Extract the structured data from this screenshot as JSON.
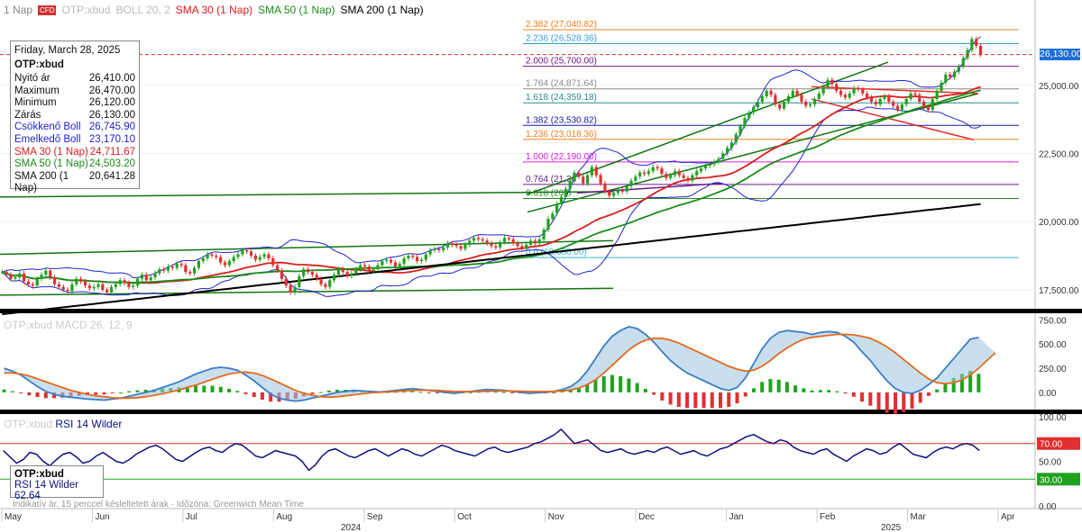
{
  "legend": {
    "prefix": "1 Nap",
    "badge": "CFD",
    "instrument": "OTP:xbud",
    "boll": "BOLL 20, 2",
    "sma30": "SMA 30 (1 Nap)",
    "sma50": "SMA 50 (1 Nap)",
    "sma200": "SMA 200 (1 Nap)"
  },
  "info": {
    "date": "Friday, March 28, 2025",
    "symbol": "OTP:xbud",
    "rows": [
      {
        "label": "Nyitó ár",
        "value": "26,410.00"
      },
      {
        "label": "Maximum",
        "value": "26,470.00"
      },
      {
        "label": "Minimum",
        "value": "26,120.00"
      },
      {
        "label": "Zárás",
        "value": "26,130.00"
      },
      {
        "label": "Csökkenő Boll",
        "value": "26,745.90"
      },
      {
        "label": "Emelkedő Boll",
        "value": "23,170.10"
      },
      {
        "label": "SMA 30 (1 Nap)",
        "value": "24,711.67"
      },
      {
        "label": "SMA 50 (1 Nap)",
        "value": "24,503.20"
      },
      {
        "label": "SMA 200 (1 Nap)",
        "value": "20,641.28"
      }
    ]
  },
  "rsi_box": {
    "symbol": "OTP:xbud",
    "label": "RSI 14 Wilder",
    "value": "62.64"
  },
  "macd_label": "OTP:xbud MACD 26, 12, 9",
  "rsi_label_symbol": "OTP:xbud",
  "rsi_label_name": "RSI 14 Wilder",
  "footnote": "Indikatív ár. 15 perccel késleltetett árak · Időzóna: Greenwich Mean Time",
  "last_price": "26,130.00",
  "colors": {
    "up": "#1fa31f",
    "down": "#e03030",
    "boll": "#2222cc",
    "sma30": "#d81e1e",
    "sma50": "#1a8c1a",
    "sma200": "#000000",
    "trend": "#117711",
    "fib": "#f08020",
    "macd": "#3a7ec4",
    "signal": "#e56a1c",
    "rsi": "#101080",
    "pricetag": "#1e6fd8"
  },
  "chart_data": [
    {
      "type": "candlestick",
      "panel": "price",
      "x_months": [
        "May",
        "Jun",
        "Jul",
        "Aug",
        "Sep",
        "Oct",
        "Nov",
        "Dec",
        "Jan",
        "Feb",
        "Mar",
        "Apr"
      ],
      "year_labels": [
        "2024",
        "2025"
      ],
      "y_ticks": [
        "17,500.00",
        "20,000.00",
        "22,500.00",
        "25,000.00"
      ],
      "ylim": [
        16800,
        28000
      ],
      "last_close": 26130,
      "closes": [
        18150,
        18050,
        17900,
        17950,
        18100,
        17800,
        17700,
        17650,
        17900,
        18050,
        18200,
        17950,
        17700,
        17600,
        17500,
        17450,
        17700,
        17900,
        17800,
        17650,
        17550,
        17600,
        17700,
        17500,
        17400,
        17600,
        17700,
        17850,
        17750,
        17600,
        17650,
        17900,
        18050,
        17850,
        17950,
        18100,
        18250,
        18200,
        18350,
        18300,
        18450,
        18400,
        18150,
        18100,
        18300,
        18550,
        18650,
        18800,
        18750,
        18700,
        18500,
        18400,
        18550,
        18700,
        18800,
        18950,
        18900,
        18750,
        18600,
        18700,
        18800,
        18650,
        18400,
        18200,
        17900,
        17650,
        17400,
        17600,
        18000,
        18250,
        18150,
        18050,
        17900,
        17700,
        17600,
        17850,
        18050,
        18250,
        18150,
        18000,
        18100,
        18250,
        18400,
        18350,
        18200,
        18250,
        18400,
        18550,
        18600,
        18500,
        18350,
        18450,
        18650,
        18750,
        18700,
        18550,
        18600,
        18800,
        18950,
        19000,
        18950,
        19050,
        19200,
        19150,
        19100,
        19000,
        19150,
        19300,
        19400,
        19350,
        19300,
        19200,
        19100,
        19050,
        19250,
        19400,
        19350,
        19200,
        19100,
        19000,
        19150,
        19300,
        19200,
        19350,
        19700,
        20100,
        20300,
        20650,
        20900,
        21200,
        21500,
        21800,
        21650,
        21400,
        21700,
        22000,
        21700,
        21400,
        21100,
        20950,
        21050,
        21150,
        21100,
        21300,
        21500,
        21650,
        21800,
        21750,
        21850,
        22000,
        21950,
        21750,
        21600,
        21700,
        21850,
        21700,
        21600,
        21500,
        21700,
        21850,
        21950,
        22050,
        22100,
        22200,
        22300,
        22500,
        22700,
        22900,
        23200,
        23500,
        23800,
        24000,
        24200,
        24400,
        24600,
        24800,
        24650,
        24300,
        24150,
        24400,
        24600,
        24800,
        24650,
        24400,
        24250,
        24300,
        24500,
        24700,
        24950,
        25200,
        25050,
        24800,
        24650,
        24550,
        24700,
        24900,
        24850,
        24700,
        24550,
        24400,
        24300,
        24500,
        24600,
        24400,
        24250,
        24100,
        24300,
        24500,
        24700,
        24650,
        24400,
        24200,
        24100,
        24500,
        24800,
        25100,
        25400,
        25300,
        25500,
        25700,
        26000,
        26300,
        26700,
        26450,
        26130
      ],
      "price_levels": [
        {
          "label": "2.382 (27,040.82)",
          "value": 27040.82,
          "color": "#f08020"
        },
        {
          "label": "2.236 (26,528.36)",
          "value": 26528.36,
          "color": "#3a9bd8"
        },
        {
          "label": "2.000 (25,700.00)",
          "value": 25700,
          "color": "#6a1b8a"
        },
        {
          "label": "1.764 (24,871.64)",
          "value": 24871.64,
          "color": "#888888"
        },
        {
          "label": "1.618 (24,359.18)",
          "value": 24359.18,
          "color": "#2a8a8a"
        },
        {
          "label": "1.382 (23,530.82)",
          "value": 23530.82,
          "color": "#1a1a9a"
        },
        {
          "label": "1.236 (23,018.36)",
          "value": 23018.36,
          "color": "#f08020"
        },
        {
          "label": "1.000 (22,190.00)",
          "value": 22190,
          "color": "#e020e0"
        },
        {
          "label": "0.764 (21,36",
          "value": 21361.64,
          "color": "#6a1b8a"
        },
        {
          "label": "0.618 (20,8",
          "value": 20849.18,
          "color": "#2a8a2a"
        },
        {
          "label": "0.0 (18,680.00)",
          "value": 18680,
          "color": "#3ab8d8"
        }
      ]
    },
    {
      "type": "bar",
      "panel": "macd",
      "name": "MACD 26, 12, 9",
      "y_ticks": [
        "750.00",
        "500.00",
        "250.00",
        "0.00"
      ],
      "ylim": [
        -150,
        800
      ],
      "macd": [
        250,
        220,
        180,
        120,
        60,
        10,
        -20,
        -40,
        -50,
        -60,
        -70,
        -75,
        -80,
        -70,
        -60,
        -40,
        -20,
        0,
        20,
        50,
        80,
        110,
        150,
        190,
        220,
        250,
        260,
        250,
        230,
        180,
        120,
        50,
        -20,
        -60,
        -80,
        -90,
        -80,
        -60,
        -40,
        -20,
        0,
        10,
        20,
        15,
        10,
        5,
        10,
        20,
        30,
        40,
        30,
        20,
        10,
        0,
        -10,
        0,
        10,
        20,
        30,
        25,
        20,
        10,
        0,
        -10,
        -5,
        0,
        10,
        30,
        60,
        120,
        220,
        350,
        480,
        580,
        640,
        680,
        660,
        600,
        520,
        420,
        330,
        260,
        200,
        160,
        120,
        80,
        40,
        20,
        50,
        150,
        300,
        450,
        560,
        620,
        640,
        630,
        620,
        600,
        620,
        630,
        620,
        580,
        520,
        420,
        330,
        220,
        120,
        40,
        0,
        -10,
        20,
        80,
        150,
        250,
        350,
        450,
        550,
        570
      ],
      "signal": [
        200,
        200,
        190,
        170,
        140,
        110,
        80,
        50,
        20,
        0,
        -20,
        -35,
        -45,
        -55,
        -60,
        -60,
        -55,
        -45,
        -30,
        -15,
        5,
        25,
        50,
        75,
        105,
        135,
        165,
        190,
        205,
        210,
        200,
        175,
        140,
        100,
        60,
        20,
        -10,
        -30,
        -45,
        -50,
        -45,
        -35,
        -25,
        -15,
        -5,
        0,
        5,
        10,
        15,
        20,
        22,
        22,
        20,
        15,
        10,
        8,
        8,
        10,
        12,
        14,
        15,
        14,
        12,
        10,
        8,
        8,
        10,
        15,
        25,
        45,
        80,
        130,
        200,
        280,
        360,
        440,
        500,
        540,
        560,
        560,
        540,
        510,
        470,
        430,
        390,
        350,
        310,
        270,
        240,
        220,
        230,
        270,
        330,
        400,
        460,
        510,
        550,
        570,
        580,
        590,
        600,
        600,
        595,
        580,
        560,
        520,
        470,
        410,
        340,
        270,
        200,
        140,
        100,
        90,
        100,
        130,
        180,
        250,
        330,
        410
      ]
    },
    {
      "type": "line",
      "panel": "rsi",
      "name": "RSI 14 Wilder",
      "y_ticks": [
        "100.00",
        "70.00",
        "50.00",
        "30.00",
        "0.00"
      ],
      "ylim": [
        0,
        100
      ],
      "reference_levels": [
        70,
        30
      ],
      "values": [
        62,
        55,
        48,
        52,
        60,
        58,
        50,
        45,
        52,
        58,
        60,
        55,
        48,
        50,
        56,
        60,
        55,
        50,
        48,
        52,
        58,
        62,
        66,
        68,
        64,
        58,
        52,
        50,
        55,
        60,
        64,
        66,
        62,
        60,
        66,
        70,
        68,
        62,
        56,
        54,
        58,
        62,
        60,
        58,
        56,
        50,
        40,
        46,
        56,
        62,
        64,
        60,
        56,
        54,
        58,
        62,
        64,
        60,
        56,
        60,
        64,
        62,
        58,
        56,
        60,
        64,
        68,
        66,
        62,
        60,
        58,
        56,
        60,
        64,
        66,
        62,
        60,
        62,
        64,
        66,
        70,
        72,
        76,
        80,
        86,
        78,
        70,
        72,
        74,
        68,
        62,
        60,
        62,
        64,
        60,
        58,
        60,
        62,
        60,
        64,
        66,
        62,
        58,
        60,
        62,
        58,
        56,
        60,
        64,
        66,
        70,
        74,
        78,
        80,
        76,
        72,
        70,
        74,
        72,
        66,
        62,
        60,
        58,
        62,
        64,
        58,
        54,
        50,
        56,
        60,
        64,
        62,
        58,
        60,
        66,
        70,
        64,
        58,
        56,
        54,
        60,
        64,
        66,
        64,
        68,
        70,
        68,
        62
      ]
    }
  ]
}
